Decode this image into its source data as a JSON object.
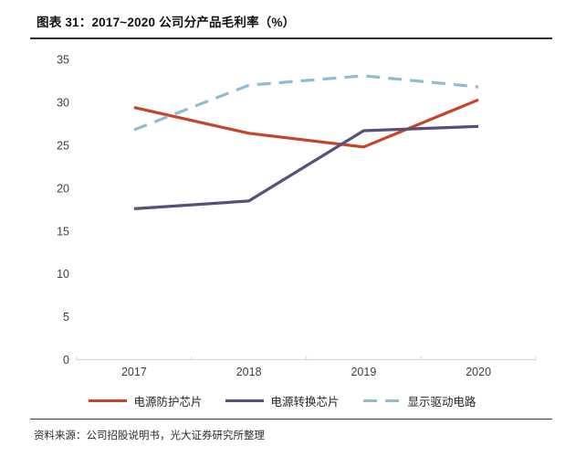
{
  "header": {
    "title": "图表 31：2017~2020 公司分产品毛利率（%）"
  },
  "footer": {
    "source": "资料来源：公司招股说明书，光大证券研究所整理"
  },
  "chart_data": {
    "type": "line",
    "title": "2017~2020 公司分产品毛利率（%）",
    "categories": [
      "2017",
      "2018",
      "2019",
      "2020"
    ],
    "series": [
      {
        "name": "电源防护芯片",
        "color": "#c6452a",
        "dashed": false,
        "values": [
          29.4,
          26.4,
          24.8,
          30.3
        ]
      },
      {
        "name": "电源转换芯片",
        "color": "#575178",
        "dashed": false,
        "values": [
          17.6,
          18.5,
          26.7,
          27.2
        ]
      },
      {
        "name": "显示驱动电路",
        "color": "#92bcce",
        "dashed": true,
        "values": [
          26.8,
          32.0,
          33.1,
          31.8
        ]
      }
    ],
    "xlabel": "",
    "ylabel": "",
    "ylim": [
      0,
      35
    ],
    "yticks": [
      0,
      5,
      10,
      15,
      20,
      25,
      30,
      35
    ],
    "grid": false,
    "legend_position": "bottom",
    "axis_color": "#d9d9d9",
    "tick_label_color": "#404040"
  }
}
